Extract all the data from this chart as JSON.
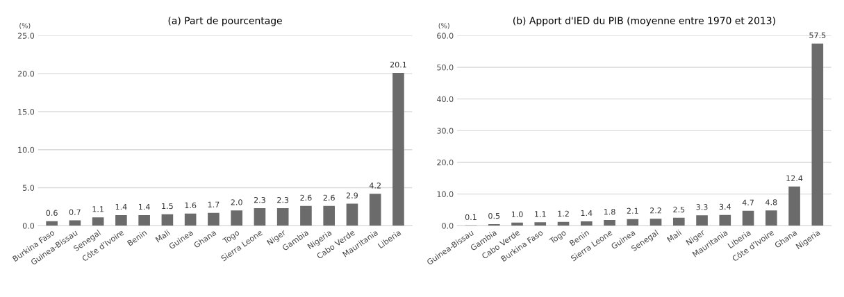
{
  "chart_data": [
    {
      "type": "bar",
      "title": "(a) Part de pourcentage",
      "ylabel": "(%)",
      "categories": [
        "Burkina Faso",
        "Guinea-Bissau",
        "Senegal",
        "Côte d'Ivoire",
        "Benin",
        "Mali",
        "Guinea",
        "Ghana",
        "Togo",
        "Sierra Leone",
        "Niger",
        "Gambia",
        "Nigeria",
        "Cabo Verde",
        "Mauritania",
        "Liberia"
      ],
      "values": [
        0.6,
        0.7,
        1.1,
        1.4,
        1.4,
        1.5,
        1.6,
        1.7,
        2.0,
        2.3,
        2.3,
        2.6,
        2.6,
        2.9,
        4.2,
        20.1
      ],
      "color": "#6b6b6b",
      "ylim": [
        0,
        25
      ],
      "yticks": [
        {
          "value": 0,
          "label": "0.0"
        },
        {
          "value": 5,
          "label": "5.0"
        },
        {
          "value": 10,
          "label": "10.0"
        },
        {
          "value": 15,
          "label": "15.0"
        },
        {
          "value": 20,
          "label": "20.0"
        },
        {
          "value": 25,
          "label": "25.0"
        }
      ],
      "value_labels": [
        "0.6",
        "0.7",
        "1.1",
        "1.4",
        "1.4",
        "1.5",
        "1.6",
        "1.7",
        "2.0",
        "2.3",
        "2.3",
        "2.6",
        "2.6",
        "2.9",
        "4.2",
        "20.1"
      ],
      "grid": "y"
    },
    {
      "type": "bar",
      "title": "(b) Apport d'IED du PIB (moyenne entre 1970 et 2013)",
      "ylabel": "(%)",
      "categories": [
        "Guinea-Bissau",
        "Gambia",
        "Cabo Verde",
        "Burkina Faso",
        "Togo",
        "Benin",
        "Sierra Leone",
        "Guinea",
        "Senegal",
        "Mali",
        "Niger",
        "Mauritania",
        "Liberia",
        "Côte d'Ivoire",
        "Ghana",
        "Nigeria"
      ],
      "values": [
        0.1,
        0.5,
        1.0,
        1.1,
        1.2,
        1.4,
        1.8,
        2.1,
        2.2,
        2.5,
        3.3,
        3.4,
        4.7,
        4.8,
        12.4,
        57.5
      ],
      "value_labels": [
        "0.1",
        "0.5",
        "1.0",
        "1.1",
        "1.2",
        "1.4",
        "1.8",
        "2.1",
        "2.2",
        "2.5",
        "3.3",
        "3.4",
        "4.7",
        "4.8",
        "12.4",
        "57.5"
      ],
      "color": "#6b6b6b",
      "ylim": [
        0,
        60
      ],
      "yticks": [
        {
          "value": 0,
          "label": "0.0"
        },
        {
          "value": 10,
          "label": "10.0"
        },
        {
          "value": 20,
          "label": "20.0"
        },
        {
          "value": 30,
          "label": "30.0"
        },
        {
          "value": 40,
          "label": "40.0"
        },
        {
          "value": 50,
          "label": "50.0"
        },
        {
          "value": 60,
          "label": "60.0"
        }
      ],
      "grid": "y"
    }
  ]
}
